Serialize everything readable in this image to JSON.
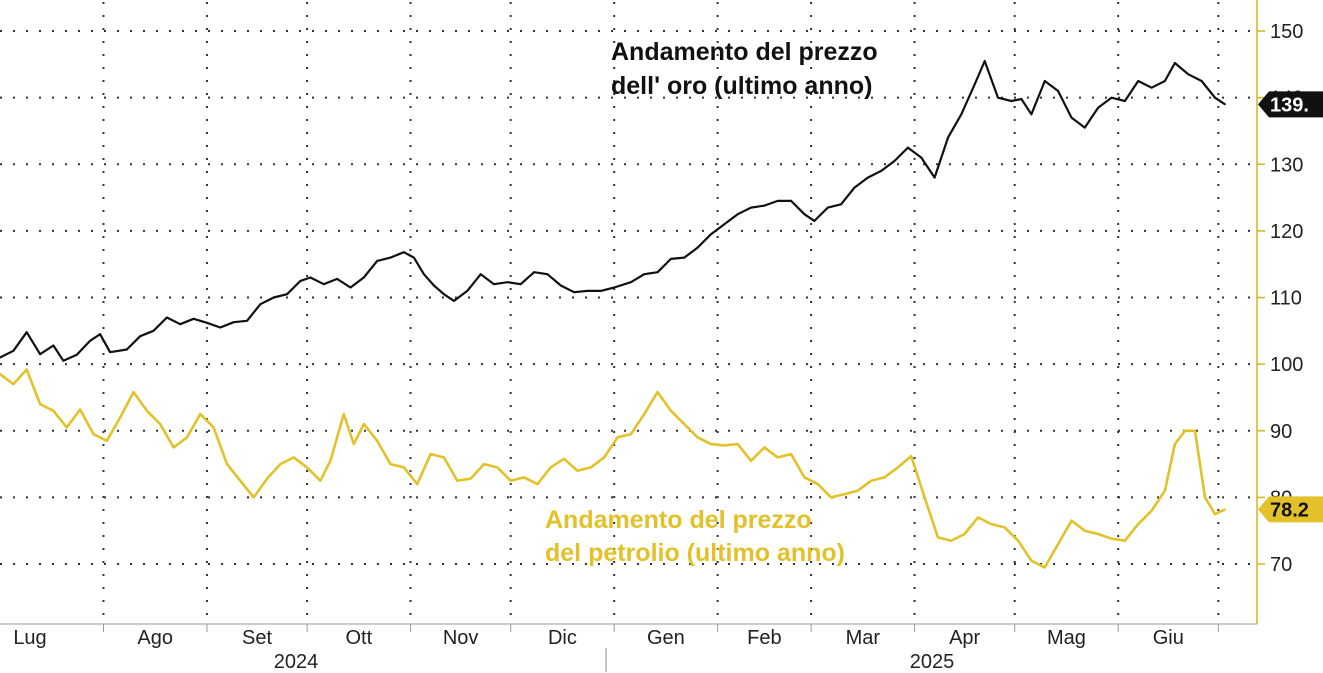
{
  "chart_data": {
    "type": "line",
    "title": "",
    "xlabel": "",
    "ylabel": "",
    "ylim": [
      60,
      152
    ],
    "y_ticks": [
      70,
      80,
      90,
      100,
      110,
      120,
      130,
      140,
      150
    ],
    "months": [
      "Lug",
      "Ago",
      "Set",
      "Ott",
      "Nov",
      "Dic",
      "Gen",
      "Feb",
      "Mar",
      "Apr",
      "Mag",
      "Giu"
    ],
    "years": [
      "2024",
      "2025"
    ],
    "grid": true,
    "axis_position": "right",
    "colors": {
      "gold": "#111111",
      "oil": "#e3c12a",
      "grid": "#333333",
      "axis": "#d6b41c"
    },
    "series": [
      {
        "key": "gold",
        "annotation": [
          "Andamento del prezzo",
          "dell' oro (ultimo anno)"
        ],
        "last_label": "139.",
        "points": [
          [
            "2024-07-01",
            101
          ],
          [
            "2024-07-05",
            102
          ],
          [
            "2024-07-09",
            104.8
          ],
          [
            "2024-07-13",
            101.5
          ],
          [
            "2024-07-17",
            102.8
          ],
          [
            "2024-07-20",
            100.5
          ],
          [
            "2024-07-24",
            101.4
          ],
          [
            "2024-07-28",
            103.5
          ],
          [
            "2024-07-31",
            104.5
          ],
          [
            "2024-08-03",
            101.8
          ],
          [
            "2024-08-08",
            102.2
          ],
          [
            "2024-08-12",
            104.2
          ],
          [
            "2024-08-16",
            105
          ],
          [
            "2024-08-20",
            107
          ],
          [
            "2024-08-24",
            106
          ],
          [
            "2024-08-28",
            106.8
          ],
          [
            "2024-09-01",
            106.2
          ],
          [
            "2024-09-05",
            105.5
          ],
          [
            "2024-09-09",
            106.3
          ],
          [
            "2024-09-13",
            106.5
          ],
          [
            "2024-09-17",
            109
          ],
          [
            "2024-09-21",
            110
          ],
          [
            "2024-09-25",
            110.5
          ],
          [
            "2024-09-29",
            112.5
          ],
          [
            "2024-10-02",
            113
          ],
          [
            "2024-10-06",
            112
          ],
          [
            "2024-10-10",
            112.8
          ],
          [
            "2024-10-14",
            111.5
          ],
          [
            "2024-10-18",
            113
          ],
          [
            "2024-10-22",
            115.5
          ],
          [
            "2024-10-26",
            116
          ],
          [
            "2024-10-30",
            116.8
          ],
          [
            "2024-11-02",
            116
          ],
          [
            "2024-11-05",
            113.5
          ],
          [
            "2024-11-08",
            111.8
          ],
          [
            "2024-11-11",
            110.5
          ],
          [
            "2024-11-14",
            109.5
          ],
          [
            "2024-11-18",
            111
          ],
          [
            "2024-11-22",
            113.5
          ],
          [
            "2024-11-26",
            112
          ],
          [
            "2024-11-30",
            112.3
          ],
          [
            "2024-12-04",
            112
          ],
          [
            "2024-12-08",
            113.8
          ],
          [
            "2024-12-12",
            113.5
          ],
          [
            "2024-12-16",
            111.8
          ],
          [
            "2024-12-20",
            110.8
          ],
          [
            "2024-12-24",
            111
          ],
          [
            "2024-12-28",
            111
          ],
          [
            "2025-01-01",
            111.5
          ],
          [
            "2025-01-06",
            112.3
          ],
          [
            "2025-01-10",
            113.5
          ],
          [
            "2025-01-14",
            113.8
          ],
          [
            "2025-01-18",
            115.8
          ],
          [
            "2025-01-22",
            116
          ],
          [
            "2025-01-26",
            117.5
          ],
          [
            "2025-01-30",
            119.5
          ],
          [
            "2025-02-03",
            121
          ],
          [
            "2025-02-07",
            122.5
          ],
          [
            "2025-02-11",
            123.5
          ],
          [
            "2025-02-15",
            123.8
          ],
          [
            "2025-02-19",
            124.5
          ],
          [
            "2025-02-23",
            124.5
          ],
          [
            "2025-02-27",
            122.5
          ],
          [
            "2025-03-02",
            121.5
          ],
          [
            "2025-03-06",
            123.5
          ],
          [
            "2025-03-10",
            124
          ],
          [
            "2025-03-14",
            126.5
          ],
          [
            "2025-03-18",
            128
          ],
          [
            "2025-03-22",
            129
          ],
          [
            "2025-03-26",
            130.5
          ],
          [
            "2025-03-30",
            132.5
          ],
          [
            "2025-04-03",
            131
          ],
          [
            "2025-04-07",
            128
          ],
          [
            "2025-04-11",
            134
          ],
          [
            "2025-04-15",
            137.5
          ],
          [
            "2025-04-19",
            142
          ],
          [
            "2025-04-22",
            145.5
          ],
          [
            "2025-04-26",
            140
          ],
          [
            "2025-04-30",
            139.5
          ],
          [
            "2025-05-03",
            139.8
          ],
          [
            "2025-05-06",
            137.5
          ],
          [
            "2025-05-10",
            142.5
          ],
          [
            "2025-05-14",
            141
          ],
          [
            "2025-05-18",
            137
          ],
          [
            "2025-05-22",
            135.5
          ],
          [
            "2025-05-26",
            138.5
          ],
          [
            "2025-05-30",
            140
          ],
          [
            "2025-06-03",
            139.5
          ],
          [
            "2025-06-07",
            142.5
          ],
          [
            "2025-06-11",
            141.5
          ],
          [
            "2025-06-15",
            142.5
          ],
          [
            "2025-06-18",
            145.2
          ],
          [
            "2025-06-22",
            143.5
          ],
          [
            "2025-06-26",
            142.5
          ],
          [
            "2025-06-30",
            140
          ],
          [
            "2025-07-03",
            139
          ]
        ]
      },
      {
        "key": "oil",
        "annotation": [
          "Andamento del prezzo",
          "del petrolio (ultimo anno)"
        ],
        "last_label": "78.2",
        "points": [
          [
            "2024-07-01",
            98.5
          ],
          [
            "2024-07-05",
            97
          ],
          [
            "2024-07-09",
            99.2
          ],
          [
            "2024-07-13",
            94
          ],
          [
            "2024-07-17",
            93
          ],
          [
            "2024-07-21",
            90.5
          ],
          [
            "2024-07-25",
            93.2
          ],
          [
            "2024-07-29",
            89.5
          ],
          [
            "2024-08-02",
            88.5
          ],
          [
            "2024-08-06",
            92
          ],
          [
            "2024-08-10",
            95.8
          ],
          [
            "2024-08-14",
            93
          ],
          [
            "2024-08-18",
            91
          ],
          [
            "2024-08-22",
            87.5
          ],
          [
            "2024-08-26",
            89
          ],
          [
            "2024-08-30",
            92.5
          ],
          [
            "2024-09-03",
            90.5
          ],
          [
            "2024-09-07",
            85
          ],
          [
            "2024-09-11",
            82.5
          ],
          [
            "2024-09-15",
            80
          ],
          [
            "2024-09-19",
            82.8
          ],
          [
            "2024-09-23",
            85
          ],
          [
            "2024-09-27",
            86
          ],
          [
            "2024-10-01",
            84.5
          ],
          [
            "2024-10-05",
            82.5
          ],
          [
            "2024-10-08",
            85.5
          ],
          [
            "2024-10-12",
            92.5
          ],
          [
            "2024-10-15",
            88
          ],
          [
            "2024-10-18",
            91
          ],
          [
            "2024-10-22",
            88.5
          ],
          [
            "2024-10-26",
            85
          ],
          [
            "2024-10-30",
            84.5
          ],
          [
            "2024-11-03",
            82
          ],
          [
            "2024-11-07",
            86.5
          ],
          [
            "2024-11-11",
            86
          ],
          [
            "2024-11-15",
            82.5
          ],
          [
            "2024-11-19",
            82.8
          ],
          [
            "2024-11-23",
            85
          ],
          [
            "2024-11-27",
            84.5
          ],
          [
            "2024-12-01",
            82.5
          ],
          [
            "2024-12-05",
            83
          ],
          [
            "2024-12-09",
            82
          ],
          [
            "2024-12-13",
            84.5
          ],
          [
            "2024-12-17",
            85.8
          ],
          [
            "2024-12-21",
            84
          ],
          [
            "2024-12-25",
            84.5
          ],
          [
            "2024-12-29",
            86
          ],
          [
            "2025-01-02",
            89
          ],
          [
            "2025-01-06",
            89.5
          ],
          [
            "2025-01-10",
            92.5
          ],
          [
            "2025-01-14",
            95.8
          ],
          [
            "2025-01-18",
            93
          ],
          [
            "2025-01-22",
            91
          ],
          [
            "2025-01-26",
            89
          ],
          [
            "2025-01-30",
            88
          ],
          [
            "2025-02-03",
            87.8
          ],
          [
            "2025-02-07",
            88
          ],
          [
            "2025-02-11",
            85.5
          ],
          [
            "2025-02-15",
            87.5
          ],
          [
            "2025-02-19",
            86
          ],
          [
            "2025-02-23",
            86.5
          ],
          [
            "2025-02-27",
            83
          ],
          [
            "2025-03-03",
            82
          ],
          [
            "2025-03-07",
            80
          ],
          [
            "2025-03-11",
            80.5
          ],
          [
            "2025-03-15",
            81
          ],
          [
            "2025-03-19",
            82.5
          ],
          [
            "2025-03-23",
            83
          ],
          [
            "2025-03-27",
            84.5
          ],
          [
            "2025-03-31",
            86.2
          ],
          [
            "2025-04-04",
            80
          ],
          [
            "2025-04-08",
            74
          ],
          [
            "2025-04-12",
            73.5
          ],
          [
            "2025-04-16",
            74.5
          ],
          [
            "2025-04-20",
            77
          ],
          [
            "2025-04-24",
            76
          ],
          [
            "2025-04-28",
            75.5
          ],
          [
            "2025-05-02",
            73.5
          ],
          [
            "2025-05-06",
            70.5
          ],
          [
            "2025-05-10",
            69.5
          ],
          [
            "2025-05-14",
            73
          ],
          [
            "2025-05-18",
            76.5
          ],
          [
            "2025-05-22",
            75
          ],
          [
            "2025-05-26",
            74.5
          ],
          [
            "2025-05-30",
            73.8
          ],
          [
            "2025-06-03",
            73.5
          ],
          [
            "2025-06-07",
            76
          ],
          [
            "2025-06-11",
            78
          ],
          [
            "2025-06-15",
            81
          ],
          [
            "2025-06-18",
            88
          ],
          [
            "2025-06-21",
            90
          ],
          [
            "2025-06-24",
            90
          ],
          [
            "2025-06-27",
            80
          ],
          [
            "2025-06-30",
            77.5
          ],
          [
            "2025-07-03",
            78.2
          ]
        ]
      }
    ]
  }
}
